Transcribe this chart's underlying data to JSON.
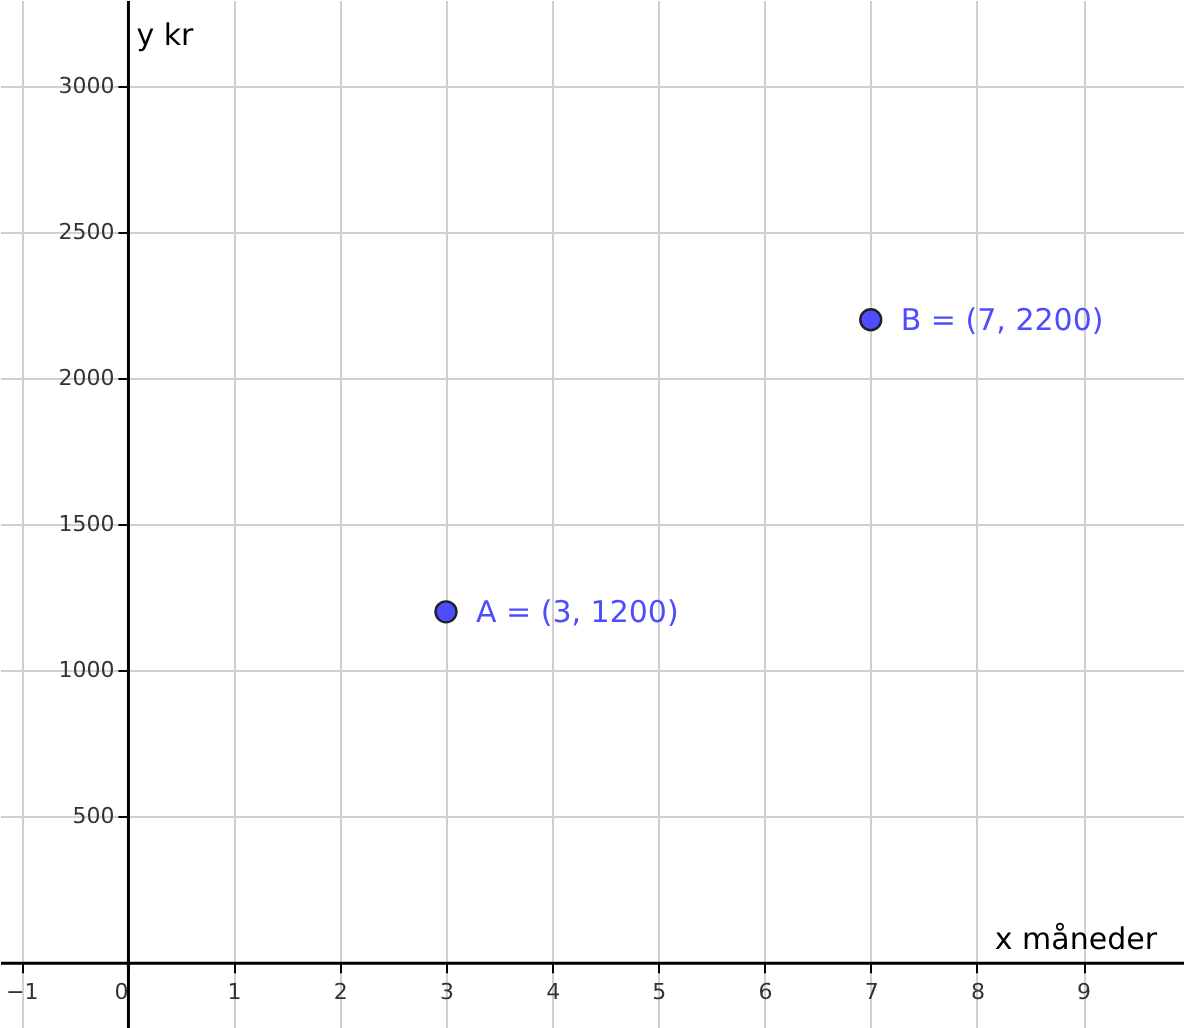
{
  "chart_data": {
    "type": "scatter",
    "xlabel": "x måneder",
    "ylabel": "y kr",
    "x": [
      3,
      7
    ],
    "series": [
      {
        "color": "#4d4dff",
        "values": [
          1200,
          2200
        ]
      }
    ],
    "annotations": [
      {
        "text": "A = (3, 1200)",
        "x": 3,
        "y": 1200
      },
      {
        "text": "B = (7, 2200)",
        "x": 7,
        "y": 2200
      }
    ],
    "xlim": [
      -1.2,
      9.95
    ],
    "ylim": [
      -225,
      3295
    ],
    "xticks": [
      -1,
      0,
      1,
      2,
      3,
      4,
      5,
      6,
      7,
      8,
      9
    ],
    "yticks": [
      500,
      1000,
      1500,
      2000,
      2500,
      3000
    ],
    "grid": true,
    "marker": "circle"
  }
}
